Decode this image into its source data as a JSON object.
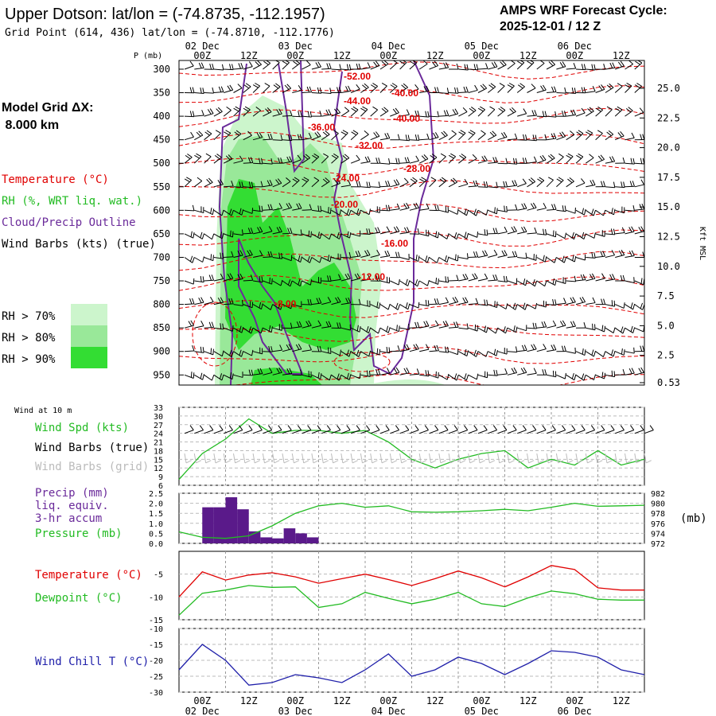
{
  "header": {
    "title": "Upper Dotson:  lat/lon = (-74.8735, -112.1957)",
    "subtitle": "Grid Point (614, 436) lat/lon = (-74.8710, -112.1776)",
    "cycle_line1": "AMPS WRF Forecast Cycle:",
    "cycle_line2": "2025-12-01 / 12  Z"
  },
  "model_grid": {
    "label": "Model Grid ΔX:",
    "value": " 8.000 km"
  },
  "upper_legend": {
    "temperature": "Temperature (°C)",
    "rh": "RH (%, WRT liq. wat.)",
    "cloud": "Cloud/Precip Outline",
    "wind": "Wind Barbs (kts) (true)",
    "rh70": "RH > 70%",
    "rh80": "RH > 80%",
    "rh90": "RH > 90%"
  },
  "colors": {
    "temperature": "#e00000",
    "rh70": "#ccf5cc",
    "rh80": "#99e899",
    "rh90": "#33dd33",
    "cloud": "#6a2a9a",
    "green_line": "#22bb22",
    "blue_line": "#2020aa",
    "precip_bar": "#5a1a8a"
  },
  "time_axis": {
    "hours": [
      "00Z",
      "12Z",
      "00Z",
      "12Z",
      "00Z",
      "12Z",
      "00Z",
      "12Z",
      "00Z",
      "12Z"
    ],
    "dates": [
      "02 Dec",
      "03 Dec",
      "04 Dec",
      "05 Dec",
      "06 Dec"
    ]
  },
  "chart_data": [
    {
      "type": "contour",
      "name": "vertical-cross-section",
      "ylabel": "P (mb)",
      "y2label": "Kft MSL",
      "pressure_levels": [
        300,
        350,
        400,
        450,
        500,
        550,
        600,
        650,
        700,
        750,
        800,
        850,
        900,
        950
      ],
      "kft_labels": [
        "25.0",
        "22.5",
        "20.0",
        "17.5",
        "15.0",
        "12.5",
        "10.0",
        "7.5",
        "5.0",
        "2.5",
        "0.53"
      ],
      "temperature_contour_labels": [
        "-52.00",
        "-44.00",
        "-40.00",
        "-40.00",
        "-36.00",
        "-32.00",
        "-28.00",
        "-24.00",
        "-20.00",
        "-16.00",
        "-12.00",
        "-8.00"
      ]
    },
    {
      "type": "line",
      "name": "wind-10m",
      "title": "Wind at 10 m",
      "labels": [
        "Wind Spd (kts)",
        "Wind Barbs (true)",
        "Wind Barbs (grid)"
      ],
      "y_ticks": [
        "33",
        "30",
        "27",
        "24",
        "21",
        "18",
        "15",
        "12",
        "9",
        "6"
      ],
      "ylim": [
        6,
        33
      ],
      "x_hours": [
        0,
        6,
        12,
        18,
        24,
        30,
        36,
        42,
        48,
        54,
        60,
        66,
        72,
        78,
        84,
        90,
        96,
        102,
        108,
        114,
        120
      ],
      "wind_speed": [
        8,
        17,
        22,
        29,
        24,
        25,
        25,
        24,
        25,
        21,
        15,
        12,
        15,
        17,
        18,
        12,
        15,
        13,
        18,
        13,
        15
      ]
    },
    {
      "type": "bar+line",
      "name": "precip-pressure",
      "labels": [
        "Precip (mm)",
        "liq. equiv.",
        "3-hr accum",
        "Pressure (mb)"
      ],
      "y_ticks": [
        "2.5",
        "2.0",
        "1.5",
        "1.0",
        "0.5",
        "0.0"
      ],
      "y2_ticks": [
        "982",
        "980",
        "978",
        "976",
        "974",
        "972"
      ],
      "y2_unit": "(mb)",
      "ylim": [
        0,
        2.5
      ],
      "y2lim": [
        972,
        982
      ],
      "precip_hours": [
        6,
        9,
        12,
        15,
        18,
        21,
        24,
        27,
        30,
        33
      ],
      "precip_values": [
        1.8,
        1.8,
        2.3,
        1.7,
        0.6,
        0.3,
        0.25,
        0.75,
        0.5,
        0.3
      ],
      "x_hours": [
        0,
        6,
        12,
        18,
        24,
        30,
        36,
        42,
        48,
        54,
        60,
        66,
        72,
        78,
        84,
        90,
        96,
        102,
        108,
        114,
        120
      ],
      "pressure": [
        974.3,
        973.2,
        973.0,
        973.5,
        975.5,
        978.0,
        979.5,
        980.0,
        979.2,
        979.5,
        978.3,
        978.2,
        978.3,
        978.5,
        978.8,
        978.5,
        979.2,
        980.0,
        979.4,
        979.5,
        979.6
      ]
    },
    {
      "type": "line",
      "name": "temp-dewpoint",
      "labels": [
        "Temperature (°C)",
        "Dewpoint (°C)"
      ],
      "y_ticks": [
        "-5",
        "-10",
        "-15"
      ],
      "ylim": [
        -15,
        0
      ],
      "x_hours": [
        0,
        6,
        12,
        18,
        24,
        30,
        36,
        42,
        48,
        54,
        60,
        66,
        72,
        78,
        84,
        90,
        96,
        102,
        108,
        114,
        120
      ],
      "temperature": [
        -10,
        -4.5,
        -6.3,
        -5.2,
        -4.7,
        -5.6,
        -7,
        -6,
        -5,
        -6.2,
        -7.5,
        -6,
        -4.3,
        -5.8,
        -7.8,
        -5.6,
        -3.1,
        -4,
        -8,
        -8.5,
        -8.5
      ],
      "dewpoint": [
        -14,
        -9.2,
        -8.5,
        -7.5,
        -7.9,
        -7.8,
        -12.3,
        -11.5,
        -9,
        -10.3,
        -11.5,
        -10.5,
        -9,
        -11.5,
        -12.1,
        -10.2,
        -8.7,
        -9.3,
        -10.5,
        -10.7,
        -10.7
      ]
    },
    {
      "type": "line",
      "name": "wind-chill",
      "labels": [
        "Wind Chill T (°C)"
      ],
      "y_ticks": [
        "-10",
        "-15",
        "-20",
        "-25",
        "-30"
      ],
      "ylim": [
        -30,
        -10
      ],
      "x_hours": [
        0,
        6,
        12,
        18,
        24,
        30,
        36,
        42,
        48,
        54,
        60,
        66,
        72,
        78,
        84,
        90,
        96,
        102,
        108,
        114,
        120
      ],
      "wind_chill": [
        -23,
        -15,
        -20,
        -27.8,
        -27,
        -24.5,
        -25.5,
        -27,
        -23,
        -18,
        -25,
        -23,
        -19,
        -21,
        -24.5,
        -21,
        -17,
        -17.5,
        -19,
        -23,
        -24.5
      ]
    }
  ]
}
